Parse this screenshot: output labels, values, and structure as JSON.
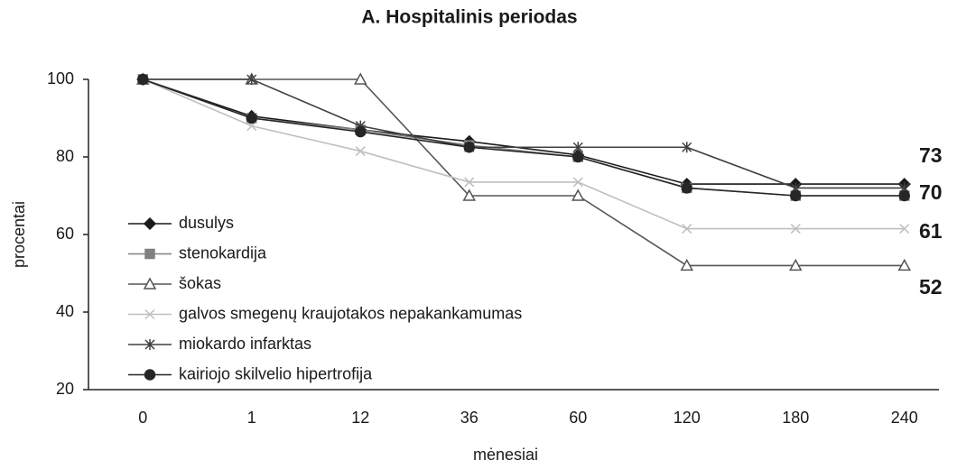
{
  "chart_data": {
    "type": "line",
    "title": "A. Hospitalinis periodas",
    "x_label": "mėnesiai",
    "y_label": "procentai",
    "categories": [
      "0",
      "1",
      "12",
      "36",
      "60",
      "120",
      "180",
      "240"
    ],
    "ylim": [
      20,
      100
    ],
    "yticks": [
      20,
      40,
      60,
      80,
      100
    ],
    "grid": false,
    "legend": "lower left",
    "annotations": [
      "73",
      "70",
      "61",
      "52"
    ],
    "series": [
      {
        "name": "dusulys",
        "color": "#1a1a1a",
        "marker": "diamond",
        "values": [
          100,
          90.5,
          87,
          84,
          80.5,
          73,
          73,
          73
        ]
      },
      {
        "name": "stenokardija",
        "color": "#808080",
        "marker": "square",
        "values": [
          100,
          90,
          87,
          83,
          80,
          72,
          70,
          70
        ]
      },
      {
        "name": "šokas",
        "color": "#555555",
        "marker": "triangle",
        "values": [
          100,
          100,
          100,
          70,
          70,
          52,
          52,
          52
        ]
      },
      {
        "name": "galvos smegenų kraujotakos nepakankamumas",
        "color": "#bfbfbf",
        "marker": "x",
        "values": [
          100,
          88,
          81.5,
          73.5,
          73.5,
          61.5,
          61.5,
          61.5
        ]
      },
      {
        "name": "miokardo infarktas",
        "color": "#404040",
        "marker": "star",
        "values": [
          100,
          100,
          88,
          82.5,
          82.5,
          82.5,
          72,
          72
        ]
      },
      {
        "name": "kairiojo skilvelio hipertrofija",
        "color": "#262626",
        "marker": "circle",
        "values": [
          100,
          90,
          86.5,
          82.5,
          80,
          72,
          70,
          70
        ]
      }
    ]
  }
}
